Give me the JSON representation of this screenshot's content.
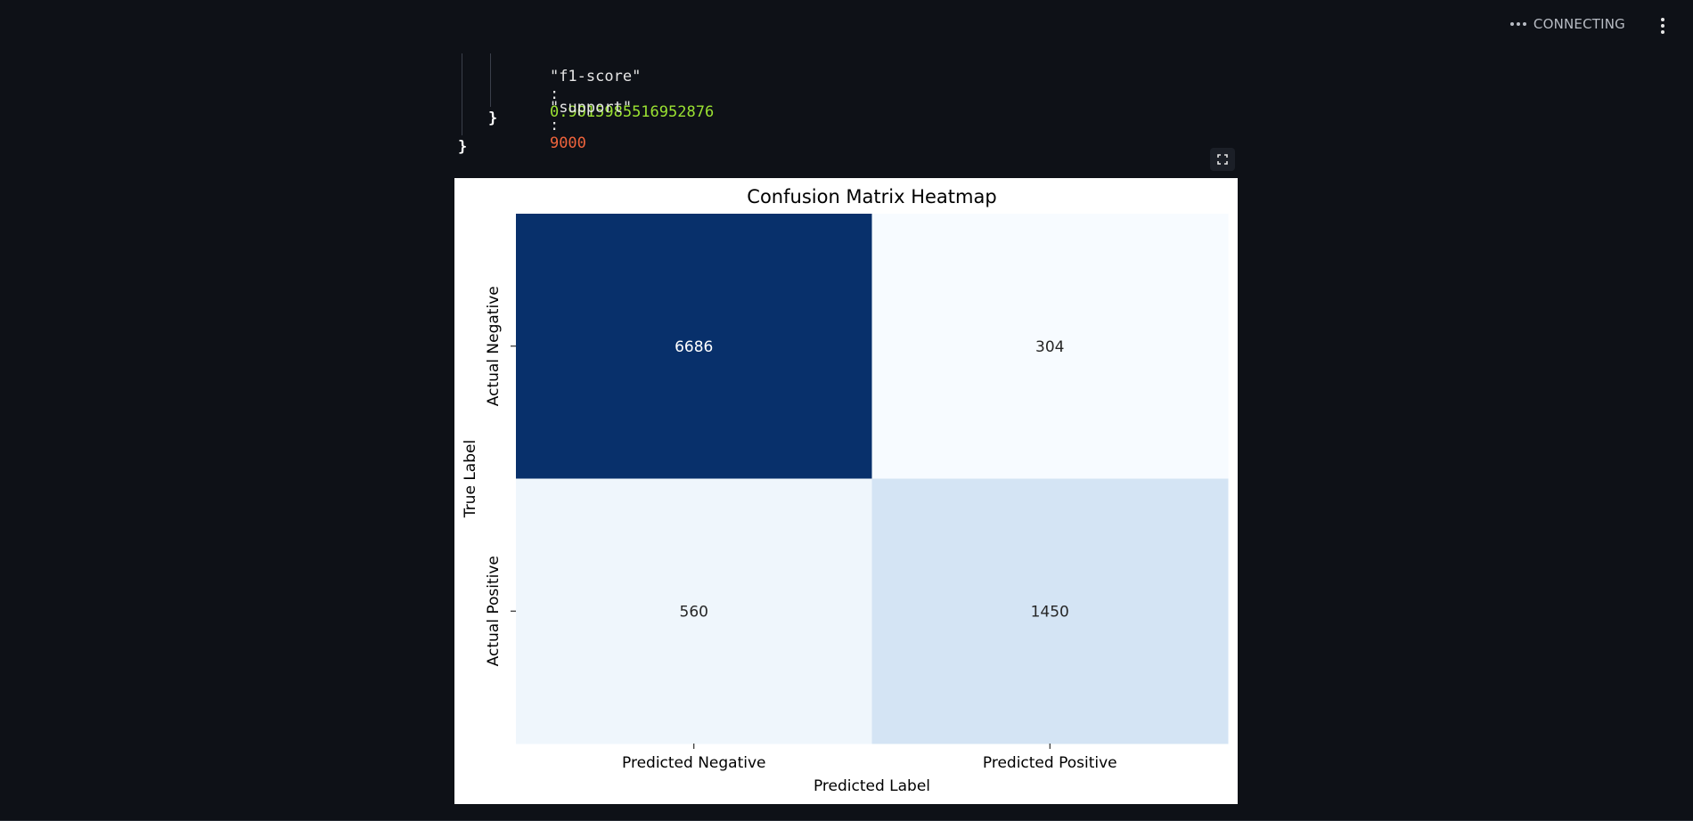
{
  "status": {
    "label": "CONNECTING"
  },
  "json_view": {
    "f1_key": "\"f1-score\"",
    "f1_value": "0.9015985516952876",
    "support_key": "\"support\"",
    "support_value": "9000",
    "colon": ":",
    "inner_close": "}",
    "outer_close": "}"
  },
  "colors": {
    "background": "#0e1117",
    "json_number_green": "#9be232",
    "json_number_red": "#f0643c",
    "heatmap_dark": "#08306b",
    "heatmap_light": "#f7fbff"
  },
  "chart_data": {
    "type": "heatmap",
    "title": "Confusion Matrix Heatmap",
    "xlabel": "Predicted Label",
    "ylabel": "True Label",
    "x_categories": [
      "Predicted Negative",
      "Predicted Positive"
    ],
    "y_categories": [
      "Actual Negative",
      "Actual Positive"
    ],
    "values": [
      [
        6686,
        304
      ],
      [
        560,
        1450
      ]
    ],
    "colormap": "Blues",
    "colorbar": false
  }
}
